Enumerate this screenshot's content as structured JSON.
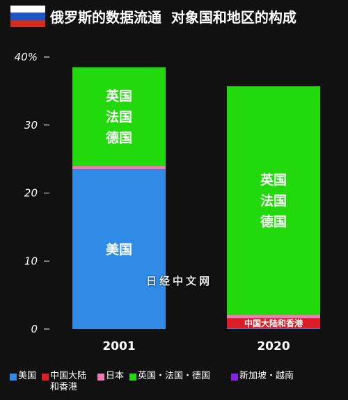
{
  "title": "俄罗斯的数据流通  对象国和地区的构成",
  "watermark": "日经中文网",
  "colors": {
    "usa": "#2f8be6",
    "china_hk": "#dc1f26",
    "japan": "#f07ab4",
    "uk_fr_de": "#22d90b",
    "sg_vn": "#8a22e6",
    "axis": "#ffffff"
  },
  "legend": [
    {
      "label": "美国",
      "color": "#2f8be6"
    },
    {
      "label": "中国大陆和香港",
      "color": "#dc1f26"
    },
    {
      "label": "日本",
      "color": "#f07ab4"
    },
    {
      "label": "英国・法国・德国",
      "color": "#22d90b"
    },
    {
      "label": "新加坡・越南",
      "color": "#8a22e6"
    }
  ],
  "chart_data": {
    "type": "bar",
    "stacked": true,
    "categories": [
      "2001",
      "2020"
    ],
    "ylim": [
      0,
      40
    ],
    "yticks": [
      "0",
      "10",
      "20",
      "30",
      "40%"
    ],
    "grid": false,
    "legend_position": "bottom",
    "series": [
      {
        "name": "美国",
        "values": [
          23.5,
          0.1
        ],
        "color": "#2f8be6"
      },
      {
        "name": "中国大陆和香港",
        "values": [
          0,
          1.5
        ],
        "color": "#dc1f26"
      },
      {
        "name": "日本",
        "values": [
          0.5,
          0.5
        ],
        "color": "#f07ab4"
      },
      {
        "name": "英国・法国・德国",
        "values": [
          14.5,
          33.6
        ],
        "color": "#22d90b"
      },
      {
        "name": "新加坡・越南",
        "values": [
          0,
          0
        ],
        "color": "#8a22e6"
      }
    ],
    "bar_labels": [
      {
        "category": "2001",
        "series": "美国",
        "lines": [
          "美国"
        ]
      },
      {
        "category": "2001",
        "series": "英国・法国・德国",
        "lines": [
          "英国",
          "法国",
          "德国"
        ]
      },
      {
        "category": "2020",
        "series": "中国大陆和香港",
        "lines": [
          "中国大陆和香港"
        ]
      },
      {
        "category": "2020",
        "series": "英国・法国・德国",
        "lines": [
          "英国",
          "法国",
          "德国"
        ]
      }
    ]
  }
}
